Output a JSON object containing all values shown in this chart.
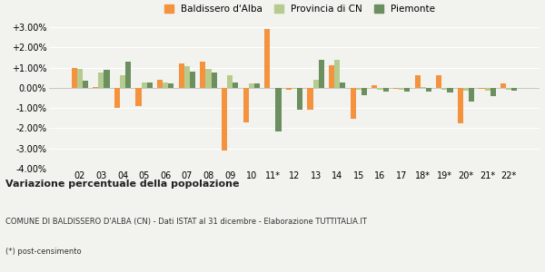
{
  "categories": [
    "02",
    "03",
    "04",
    "05",
    "06",
    "07",
    "08",
    "09",
    "10",
    "11*",
    "12",
    "13",
    "14",
    "15",
    "16",
    "17",
    "18*",
    "19*",
    "20*",
    "21*",
    "22*"
  ],
  "baldissero": [
    1.0,
    0.05,
    -1.0,
    -0.9,
    0.4,
    1.2,
    1.3,
    -3.1,
    -1.7,
    2.9,
    -0.1,
    -1.1,
    1.1,
    -1.55,
    0.15,
    -0.05,
    0.6,
    0.6,
    -1.75,
    -0.05,
    0.2
  ],
  "provincia_cn": [
    0.95,
    0.75,
    0.6,
    0.25,
    0.25,
    1.05,
    0.95,
    0.6,
    0.2,
    0.0,
    -0.05,
    0.4,
    1.4,
    -0.1,
    -0.1,
    -0.1,
    0.05,
    -0.1,
    -0.15,
    -0.15,
    -0.1
  ],
  "piemonte": [
    0.35,
    0.9,
    1.3,
    0.25,
    0.2,
    0.8,
    0.75,
    0.25,
    0.2,
    -2.15,
    -1.1,
    1.4,
    0.25,
    -0.35,
    -0.2,
    -0.2,
    -0.2,
    -0.25,
    -0.7,
    -0.4,
    -0.15
  ],
  "baldissero_color": "#f5923e",
  "provincia_cn_color": "#b5cc8e",
  "piemonte_color": "#6b8f5e",
  "title": "Variazione percentuale della popolazione",
  "subtitle": "COMUNE DI BALDISSERO D'ALBA (CN) - Dati ISTAT al 31 dicembre - Elaborazione TUTTITALIA.IT",
  "footnote": "(*) post-censimento",
  "ylim": [
    -4.0,
    3.0
  ],
  "yticks": [
    -4.0,
    -3.0,
    -2.0,
    -1.0,
    0.0,
    1.0,
    2.0,
    3.0
  ],
  "ytick_labels": [
    "-4.00%",
    "-3.00%",
    "-2.00%",
    "-1.00%",
    "0.00%",
    "+1.00%",
    "+2.00%",
    "+3.00%"
  ],
  "bg_color": "#f2f2ee",
  "legend_labels": [
    "Baldissero d'Alba",
    "Provincia di CN",
    "Piemonte"
  ]
}
